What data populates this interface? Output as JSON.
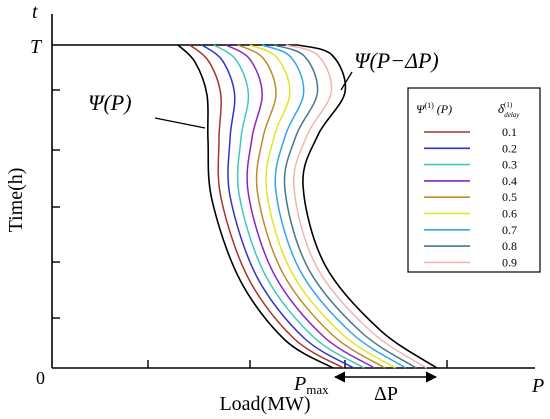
{
  "axes": {
    "y_symbol": "t",
    "y_top": "T",
    "y_label": "Time(h)",
    "origin": "0",
    "x_label": "Load(MW)",
    "x_symbol": "P",
    "pmax": "P",
    "pmax_sub": "max",
    "delta": "ΔP"
  },
  "annotations": {
    "inner": "Ψ(P)",
    "outer": "Ψ(P−ΔP)"
  },
  "legend": {
    "col1": "Ψ",
    "col1_sup": "(1)",
    "col1_rest": "(P)",
    "col2": "δ",
    "col2_sup": "(1)",
    "col2_sub": "delay",
    "items": [
      {
        "value": 0.1,
        "color": "#a8322a"
      },
      {
        "value": 0.2,
        "color": "#3232c8"
      },
      {
        "value": 0.3,
        "color": "#44c4c0"
      },
      {
        "value": 0.4,
        "color": "#8a24c8"
      },
      {
        "value": 0.5,
        "color": "#c08a26"
      },
      {
        "value": 0.6,
        "color": "#e4e424"
      },
      {
        "value": 0.7,
        "color": "#34a6e4"
      },
      {
        "value": 0.8,
        "color": "#44788f"
      },
      {
        "value": 0.9,
        "color": "#f2b4b0"
      }
    ]
  }
}
